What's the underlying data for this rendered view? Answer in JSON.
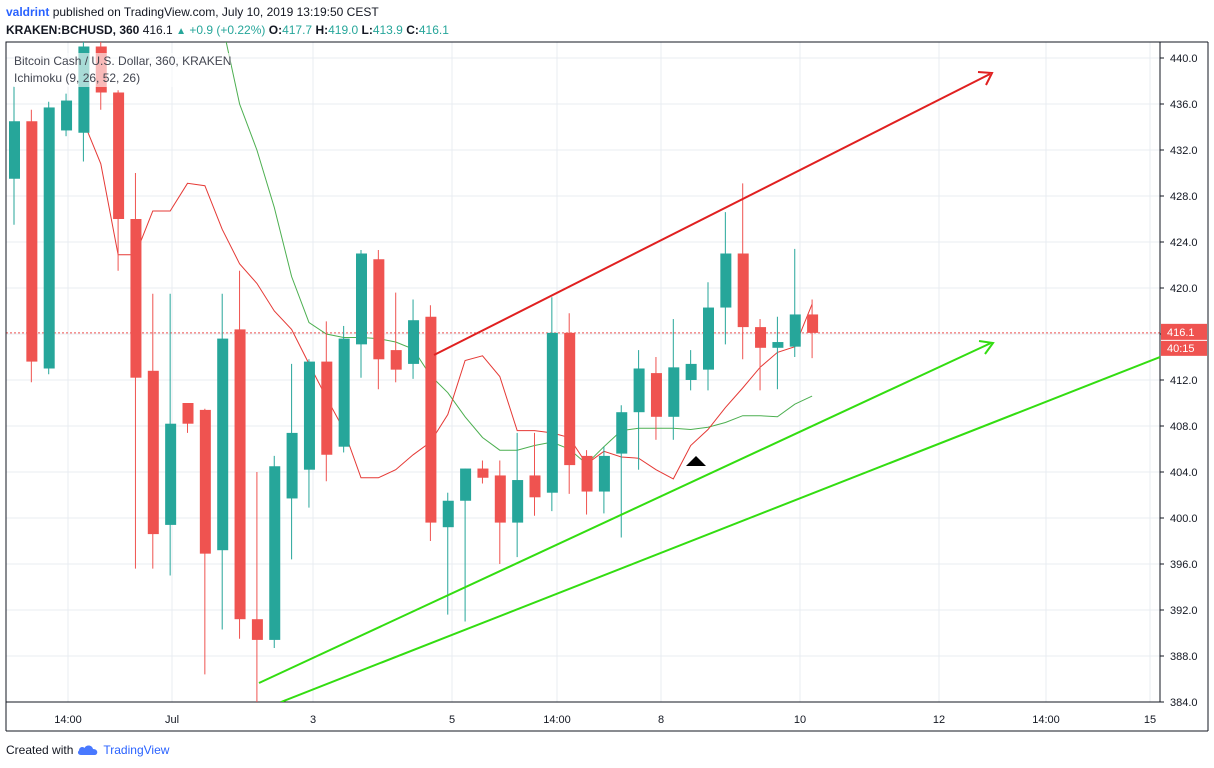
{
  "header": {
    "author": "valdrint",
    "published_text": "published on TradingView.com, July 10, 2019 13:19:50 CEST",
    "symbol": "KRAKEN:BCHUSD, 360",
    "last": "416.1",
    "change": "+0.9 (+0.22%)",
    "o_label": "O:",
    "o_value": "417.7",
    "h_label": "H:",
    "h_value": "419.0",
    "l_label": "L:",
    "l_value": "413.9",
    "c_label": "C:",
    "c_value": "416.1"
  },
  "legend": {
    "series_title": "Bitcoin Cash / U.S. Dollar, 360, KRAKEN",
    "indicator": "Ichimoku (9, 26, 52, 26)"
  },
  "footer": {
    "created_with": "Created with",
    "brand": "TradingView"
  },
  "colors": {
    "up": "#26a69a",
    "down": "#ef5350",
    "conversion_line": "#e53935",
    "base_line": "#4caf50",
    "red_arrow": "#e02020",
    "green_lines": "#33dd11",
    "grid": "#e8ecf2",
    "price_line": "#ef5350"
  },
  "chart_data": {
    "type": "candlestick",
    "title": "Bitcoin Cash / U.S. Dollar, 360, KRAKEN",
    "ylim": [
      384,
      442
    ],
    "y_ticks": [
      "440.0",
      "436.0",
      "432.0",
      "428.0",
      "424.0",
      "420.0",
      "416.0",
      "412.0",
      "408.0",
      "404.0",
      "400.0",
      "396.0",
      "392.0",
      "388.0",
      "384.0"
    ],
    "x_ticks": [
      "14:00",
      "Jul",
      "3",
      "5",
      "14:00",
      "8",
      "10",
      "12",
      "14:00",
      "15"
    ],
    "candles": [
      {
        "o": 429.5,
        "h": 437.5,
        "l": 425.5,
        "c": 434.5
      },
      {
        "o": 434.5,
        "h": 435.5,
        "l": 411.8,
        "c": 413.6
      },
      {
        "o": 413.0,
        "h": 436.2,
        "l": 412.5,
        "c": 435.7
      },
      {
        "o": 433.7,
        "h": 436.9,
        "l": 433.2,
        "c": 436.3
      },
      {
        "o": 433.5,
        "h": 443.5,
        "l": 431.0,
        "c": 441.0
      },
      {
        "o": 441.0,
        "h": 442.0,
        "l": 435.5,
        "c": 437.0
      },
      {
        "o": 437.0,
        "h": 437.2,
        "l": 421.5,
        "c": 426.0
      },
      {
        "o": 426.0,
        "h": 430.0,
        "l": 395.6,
        "c": 412.2
      },
      {
        "o": 412.8,
        "h": 419.5,
        "l": 395.6,
        "c": 398.6
      },
      {
        "o": 399.4,
        "h": 419.5,
        "l": 395.0,
        "c": 408.2
      },
      {
        "o": 410.0,
        "h": 410.0,
        "l": 407.4,
        "c": 408.2
      },
      {
        "o": 409.4,
        "h": 409.5,
        "l": 386.4,
        "c": 396.9
      },
      {
        "o": 397.2,
        "h": 419.5,
        "l": 390.3,
        "c": 415.6
      },
      {
        "o": 416.4,
        "h": 421.5,
        "l": 389.5,
        "c": 391.2
      },
      {
        "o": 391.2,
        "h": 404.0,
        "l": 384.0,
        "c": 389.4
      },
      {
        "o": 389.4,
        "h": 405.4,
        "l": 388.7,
        "c": 404.5
      },
      {
        "o": 401.7,
        "h": 413.4,
        "l": 396.4,
        "c": 407.4
      },
      {
        "o": 404.2,
        "h": 413.8,
        "l": 400.9,
        "c": 413.6
      },
      {
        "o": 413.6,
        "h": 417.1,
        "l": 403.2,
        "c": 405.5
      },
      {
        "o": 406.2,
        "h": 416.7,
        "l": 405.7,
        "c": 415.6
      },
      {
        "o": 415.1,
        "h": 423.3,
        "l": 412.2,
        "c": 423.0
      },
      {
        "o": 422.5,
        "h": 423.3,
        "l": 411.2,
        "c": 413.8
      },
      {
        "o": 414.6,
        "h": 419.6,
        "l": 411.8,
        "c": 412.9
      },
      {
        "o": 413.4,
        "h": 419.0,
        "l": 412.1,
        "c": 417.2
      },
      {
        "o": 417.5,
        "h": 418.5,
        "l": 398.0,
        "c": 399.6
      },
      {
        "o": 399.2,
        "h": 402.2,
        "l": 391.6,
        "c": 401.5
      },
      {
        "o": 401.5,
        "h": 404.3,
        "l": 391.0,
        "c": 404.3
      },
      {
        "o": 404.3,
        "h": 405.0,
        "l": 403.0,
        "c": 403.5
      },
      {
        "o": 403.7,
        "h": 405.0,
        "l": 396.0,
        "c": 399.6
      },
      {
        "o": 399.6,
        "h": 407.4,
        "l": 396.6,
        "c": 403.3
      },
      {
        "o": 403.7,
        "h": 407.4,
        "l": 400.2,
        "c": 401.8
      },
      {
        "o": 402.2,
        "h": 419.2,
        "l": 400.6,
        "c": 416.1
      },
      {
        "o": 416.1,
        "h": 417.8,
        "l": 402.1,
        "c": 404.6
      },
      {
        "o": 405.4,
        "h": 405.9,
        "l": 400.3,
        "c": 402.3
      },
      {
        "o": 402.3,
        "h": 406.2,
        "l": 400.4,
        "c": 405.4
      },
      {
        "o": 405.6,
        "h": 409.8,
        "l": 398.3,
        "c": 409.2
      },
      {
        "o": 409.2,
        "h": 414.6,
        "l": 404.2,
        "c": 413.0
      },
      {
        "o": 412.6,
        "h": 414.0,
        "l": 406.8,
        "c": 408.8
      },
      {
        "o": 408.8,
        "h": 417.3,
        "l": 406.8,
        "c": 413.1
      },
      {
        "o": 412.0,
        "h": 414.6,
        "l": 411.1,
        "c": 413.4
      },
      {
        "o": 412.9,
        "h": 420.5,
        "l": 411.1,
        "c": 418.3
      },
      {
        "o": 418.3,
        "h": 426.6,
        "l": 415.1,
        "c": 423.0
      },
      {
        "o": 423.0,
        "h": 429.1,
        "l": 413.8,
        "c": 416.6
      },
      {
        "o": 416.6,
        "h": 417.3,
        "l": 411.1,
        "c": 414.8
      },
      {
        "o": 414.8,
        "h": 417.5,
        "l": 411.2,
        "c": 415.3
      },
      {
        "o": 414.9,
        "h": 423.4,
        "l": 414.0,
        "c": 417.7
      },
      {
        "o": 417.7,
        "h": 419.0,
        "l": 413.9,
        "c": 416.1
      }
    ],
    "ichimoku": {
      "params": [
        9,
        26,
        52,
        26
      ],
      "conversion_line": [
        434.5,
        430.8,
        422.9,
        422.9,
        426.7,
        426.7,
        429.1,
        428.9,
        425.1,
        422.1,
        420.4,
        418.0,
        416.4,
        413.4,
        410.5,
        407.7,
        403.5,
        403.5,
        404.2,
        405.5,
        406.6,
        409.0,
        413.7,
        414.1,
        412.3,
        407.6,
        407.6,
        407.4,
        407.0,
        404.7,
        405.8,
        405.3,
        405.2,
        404.2,
        403.4,
        406.3,
        407.7,
        409.6,
        411.3,
        413.1,
        414.4,
        414.9,
        418.6
      ],
      "base_line": [
        443.0,
        436.0,
        432.0,
        427.0,
        421.0,
        417.0,
        416.0,
        415.7,
        415.7,
        415.6,
        415.3,
        414.7,
        412.4,
        410.9,
        408.8,
        407.0,
        405.9,
        405.9,
        406.3,
        406.6,
        406.0,
        404.7,
        406.2,
        407.6,
        407.8,
        407.8,
        407.8,
        407.7,
        407.9,
        408.3,
        408.9,
        408.9,
        408.8,
        409.9,
        410.6
      ]
    },
    "last_price": "416.1",
    "countdown": "40:15",
    "drawings": [
      "red upward arrow",
      "green upward arrow",
      "green parallel trend line",
      "black triangle marker"
    ]
  }
}
